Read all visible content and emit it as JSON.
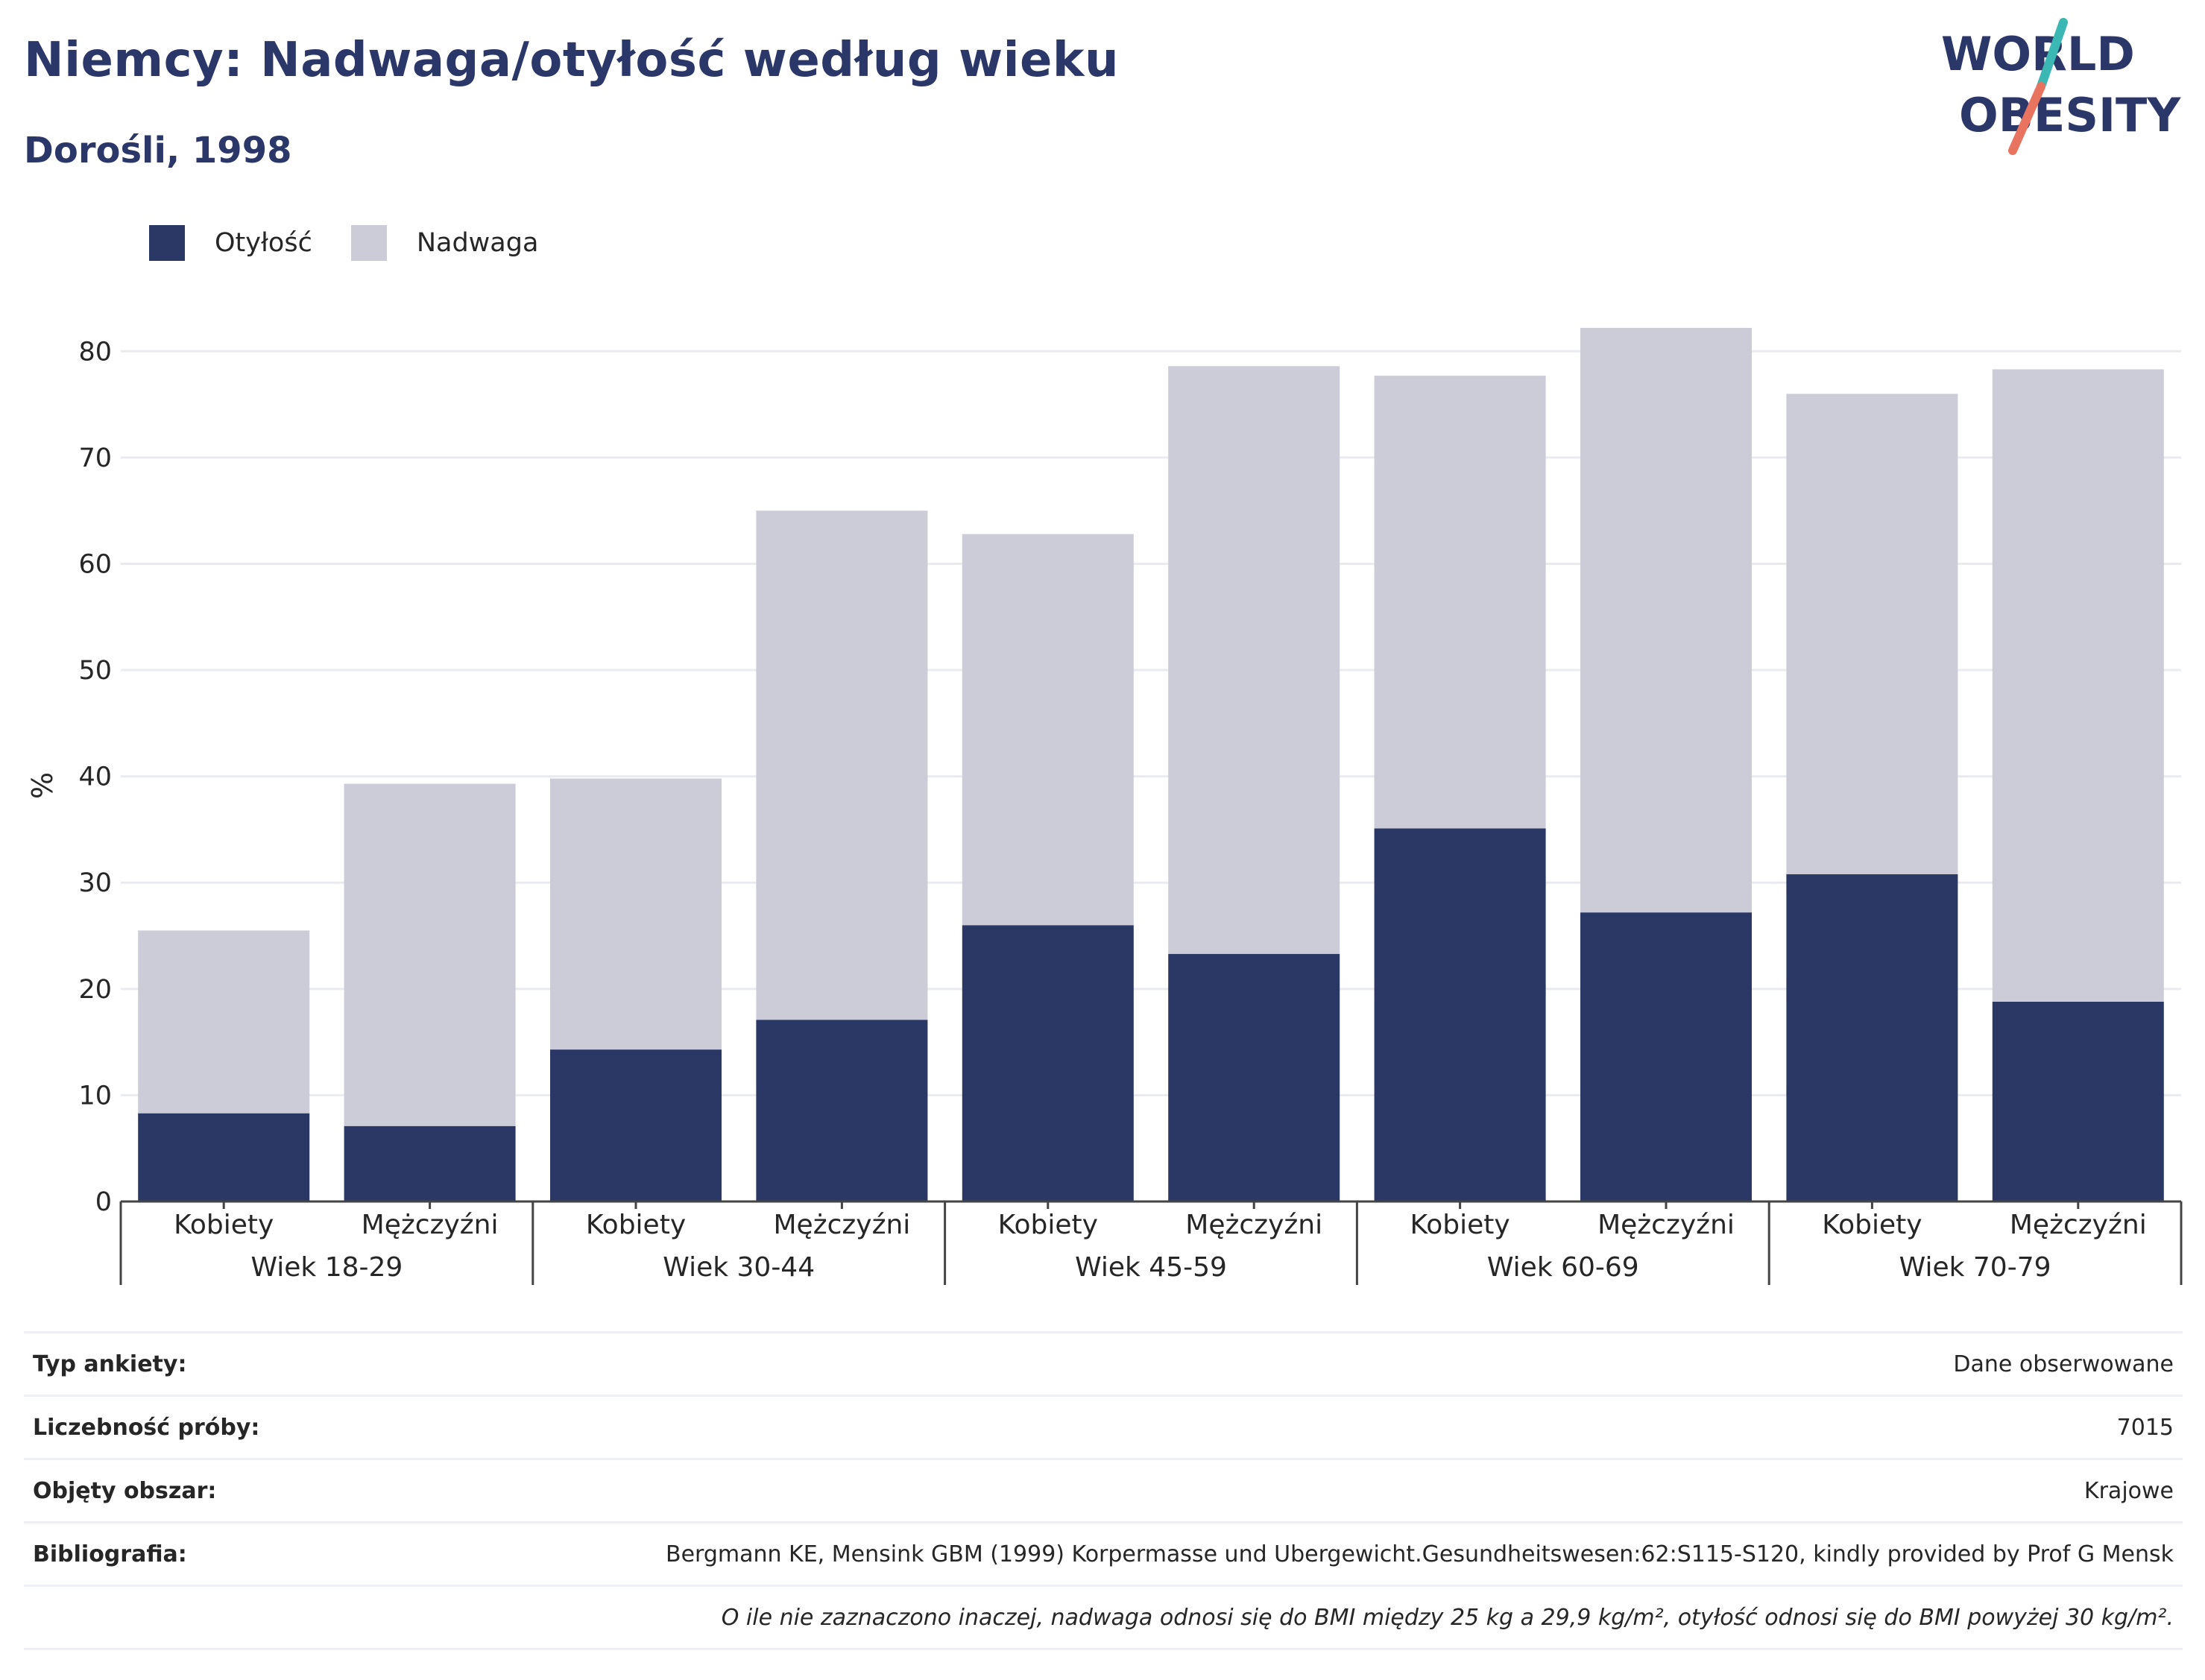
{
  "title": "Niemcy: Nadwaga/otyłość według wieku",
  "subtitle": "Dorośli, 1998",
  "logo": {
    "line1": "WORLD",
    "line2": "OBESITY",
    "accent_teal": "#3bb8b3",
    "accent_coral": "#e8735f",
    "text_color": "#2b3768"
  },
  "legend": [
    {
      "name": "Otyłość",
      "color": "#2b3765"
    },
    {
      "name": "Nadwaga",
      "color": "#cbccd8"
    }
  ],
  "chart_data": {
    "type": "bar",
    "stacked": true,
    "ylabel": "%",
    "ylim": [
      0,
      85
    ],
    "yticks": [
      0,
      10,
      20,
      30,
      40,
      50,
      60,
      70,
      80
    ],
    "grid": true,
    "legend_position": "top-left",
    "groups": [
      "Wiek 18-29",
      "Wiek 30-44",
      "Wiek 45-59",
      "Wiek 60-69",
      "Wiek 70-79"
    ],
    "categories": [
      "Kobiety",
      "Mężczyźni",
      "Kobiety",
      "Mężczyźni",
      "Kobiety",
      "Mężczyźni",
      "Kobiety",
      "Mężczyźni",
      "Kobiety",
      "Mężczyźni"
    ],
    "series": [
      {
        "name": "Otyłość",
        "color": "#2b3765",
        "values": [
          8.3,
          7.1,
          14.3,
          17.1,
          26,
          23.3,
          35.1,
          27.2,
          30.8,
          18.8
        ]
      },
      {
        "name": "Nadwaga",
        "color": "#cbccd8",
        "values": [
          17.2,
          32.2,
          25.5,
          47.9,
          36.8,
          55.3,
          42.6,
          55,
          45.2,
          59.5
        ]
      }
    ]
  },
  "info": [
    {
      "label": "Typ ankiety:",
      "value": "Dane obserwowane"
    },
    {
      "label": "Liczebność próby:",
      "value": "7015"
    },
    {
      "label": "Objęty obszar:",
      "value": "Krajowe"
    },
    {
      "label": "Bibliografia:",
      "value": "Bergmann KE, Mensink GBM (1999) Korpermasse und Ubergewicht.Gesundheitswesen:62:S115-S120, kindly provided by Prof G Mensk"
    }
  ],
  "note": "O ile nie zaznaczono inaczej, nadwaga odnosi się do BMI między 25 kg a 29,9 kg/m², otyłość odnosi się do BMI powyżej 30 kg/m²."
}
